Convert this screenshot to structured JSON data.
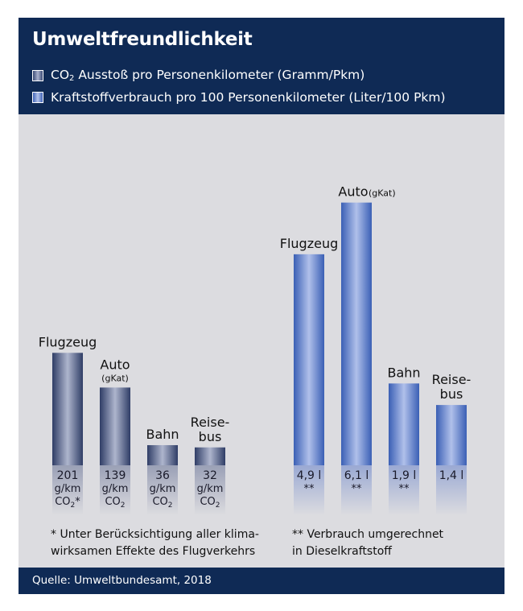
{
  "header": {
    "title": "Umweltfreundlichkeit",
    "legend": [
      {
        "label_pre": "CO",
        "label_sub": "2",
        "label_post": " Ausstoß pro Personenkilometer (Gramm/Pkm)",
        "color": "#3a4a76"
      },
      {
        "label_pre": "Kraftstoffverbrauch pro 100 Personenkilometer (Liter/100 Pkm)",
        "label_sub": "",
        "label_post": "",
        "color": "#3f63b8"
      }
    ]
  },
  "chart_data": [
    {
      "type": "bar",
      "series": [
        {
          "name": "CO2 Ausstoß pro Personenkilometer (Gramm/Pkm)",
          "color": "#3a4a76"
        }
      ],
      "categories": [
        {
          "name": [
            "Flugzeug"
          ],
          "note": "",
          "value": 201,
          "label": [
            "201",
            "g/km",
            "CO2*"
          ]
        },
        {
          "name": [
            "Auto"
          ],
          "note": "(gKat)",
          "value": 139,
          "label": [
            "139",
            "g/km",
            "CO2"
          ]
        },
        {
          "name": [
            "Bahn"
          ],
          "note": "",
          "value": 36,
          "label": [
            "36",
            "g/km",
            "CO2"
          ]
        },
        {
          "name": [
            "Reise-",
            "bus"
          ],
          "note": "",
          "value": 32,
          "label": [
            "32",
            "g/km",
            "CO2"
          ]
        }
      ],
      "values": [
        201,
        139,
        36,
        32
      ],
      "unit": "g/km",
      "footnote": [
        "* Unter Berücksichtigung aller klima-",
        "wirksamen Effekte des Flugverkehrs"
      ]
    },
    {
      "type": "bar",
      "series": [
        {
          "name": "Kraftstoffverbrauch pro 100 Personenkilometer (Liter/100 Pkm)",
          "color": "#3f63b8"
        }
      ],
      "categories": [
        {
          "name": [
            "Flugzeug"
          ],
          "note": "",
          "value": 4.9,
          "label": [
            "4,9 l",
            "**"
          ]
        },
        {
          "name": [
            "Auto"
          ],
          "note": "(gKat)",
          "value": 6.1,
          "label": [
            "6,1 l",
            "**"
          ]
        },
        {
          "name": [
            "Bahn"
          ],
          "note": "",
          "value": 1.9,
          "label": [
            "1,9 l",
            "**"
          ]
        },
        {
          "name": [
            "Reise-",
            "bus"
          ],
          "note": "",
          "value": 1.4,
          "label": [
            "1,4 l"
          ]
        }
      ],
      "values": [
        4.9,
        6.1,
        1.9,
        1.4
      ],
      "unit": "l",
      "footnote": [
        "** Verbrauch umgerechnet",
        "in Dieselkraftstoff"
      ]
    }
  ],
  "footer": {
    "source": "Quelle: Umweltbundesamt, 2018"
  }
}
